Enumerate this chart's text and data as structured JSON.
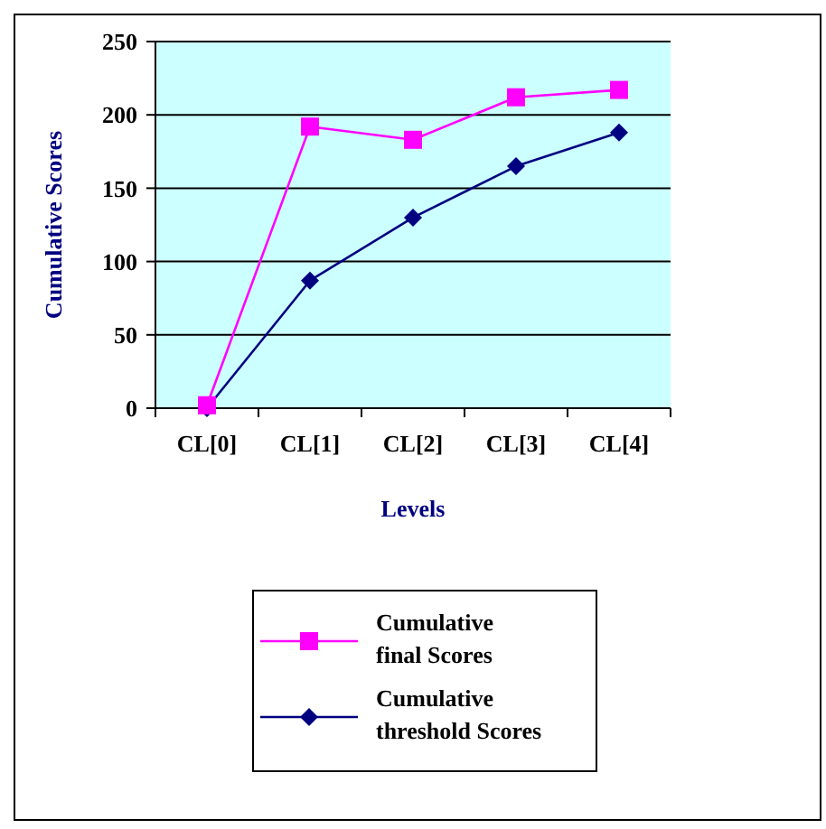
{
  "chart_data": {
    "type": "line",
    "xlabel": "Levels",
    "ylabel": "Cumulative Scores",
    "categories": [
      "CL[0]",
      "CL[1]",
      "CL[2]",
      "CL[3]",
      "CL[4]"
    ],
    "series": [
      {
        "name": "Cumulative final Scores",
        "color": "#ff00ff",
        "marker": "square",
        "values": [
          2,
          192,
          183,
          212,
          217
        ]
      },
      {
        "name": "Cumulative threshold Scores",
        "color": "#000080",
        "marker": "diamond",
        "values": [
          0,
          87,
          130,
          165,
          188
        ]
      }
    ],
    "ylim": [
      0,
      250
    ],
    "yticks": [
      0,
      50,
      100,
      150,
      200,
      250
    ],
    "grid": "y",
    "legend": "bottom"
  }
}
